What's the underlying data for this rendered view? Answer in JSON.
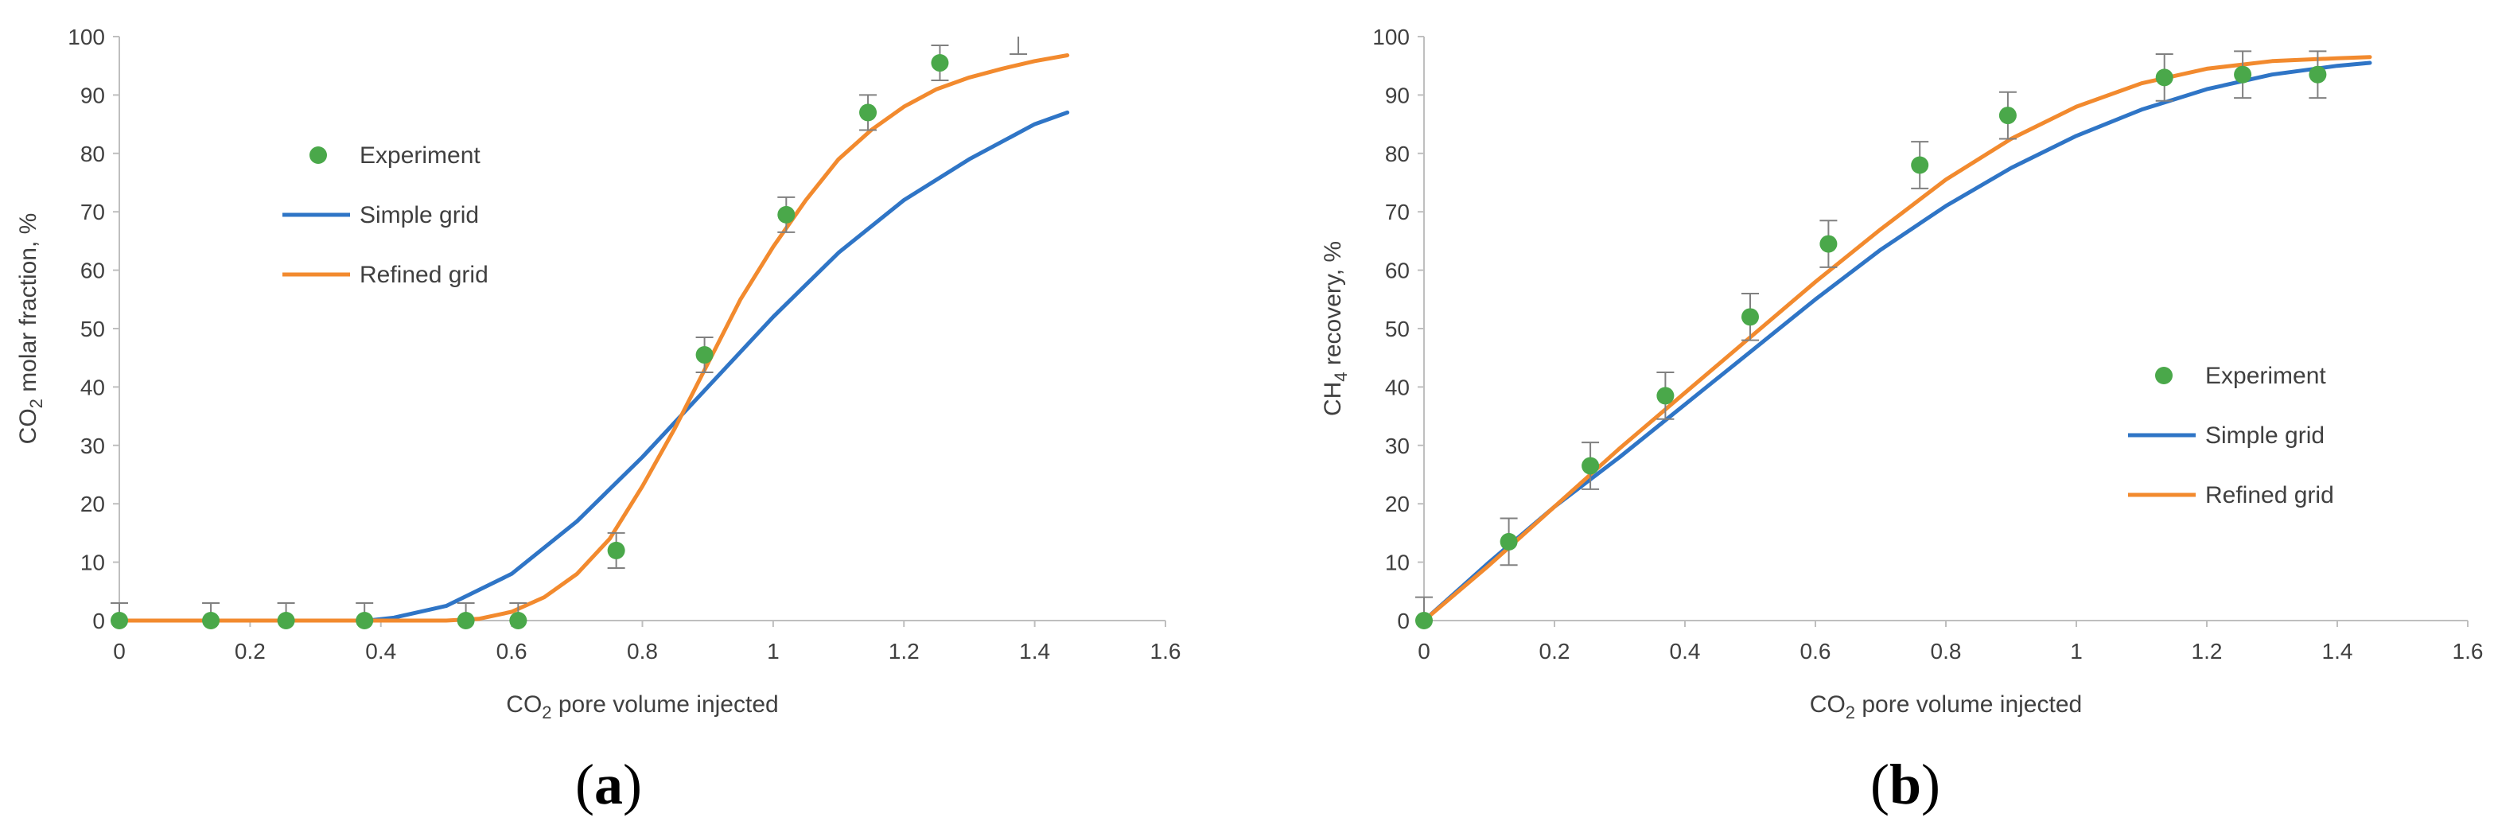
{
  "colors": {
    "experiment": "#4aa84a",
    "simple": "#2f75c6",
    "refined": "#f28a2e",
    "axis": "#bfbfbf",
    "errorbar": "#808080",
    "text": "#404040"
  },
  "chart_data": [
    {
      "type": "scatter",
      "panel_label": {
        "open": "(",
        "letter": "a",
        "close": ")"
      },
      "xlabel": {
        "pre": "CO",
        "sub": "2",
        "post": " pore volume injected"
      },
      "ylabel": {
        "pre": "CO",
        "sub": "2",
        "post": " molar fraction, %"
      },
      "xlim": [
        0,
        1.6
      ],
      "ylim": [
        0,
        100
      ],
      "xticks": [
        "0",
        "0.2",
        "0.4",
        "0.6",
        "0.8",
        "1",
        "1.2",
        "1.4",
        "1.6"
      ],
      "yticks": [
        "0",
        "10",
        "20",
        "30",
        "40",
        "50",
        "60",
        "70",
        "80",
        "90",
        "100"
      ],
      "legend_position": "upper-left",
      "legend": [
        "Experiment",
        "Simple grid",
        "Refined grid"
      ],
      "experiment": {
        "name": "Experiment",
        "x": [
          0,
          0.14,
          0.255,
          0.375,
          0.53,
          0.61,
          0.76,
          0.895,
          1.02,
          1.145,
          1.255
        ],
        "y": [
          0,
          0,
          0,
          0,
          0,
          0,
          12,
          45.5,
          69.5,
          87,
          95.5
        ],
        "error": [
          3,
          3,
          3,
          3,
          3,
          3,
          3,
          3,
          3,
          3,
          3
        ]
      },
      "orphan_errorbar": {
        "x": 1.375,
        "y": 100,
        "error": 3
      },
      "series": [
        {
          "name": "Simple grid",
          "x": [
            0,
            0.38,
            0.42,
            0.5,
            0.6,
            0.7,
            0.8,
            0.9,
            1.0,
            1.1,
            1.2,
            1.3,
            1.4,
            1.45
          ],
          "y": [
            0,
            0,
            0.5,
            2.5,
            8,
            17,
            28,
            40,
            52,
            63,
            72,
            79,
            85,
            87
          ]
        },
        {
          "name": "Refined grid",
          "x": [
            0,
            0.5,
            0.55,
            0.6,
            0.65,
            0.7,
            0.75,
            0.8,
            0.85,
            0.9,
            0.95,
            1.0,
            1.05,
            1.1,
            1.15,
            1.2,
            1.25,
            1.3,
            1.35,
            1.4,
            1.45
          ],
          "y": [
            0,
            0,
            0.3,
            1.5,
            4,
            8,
            14,
            23,
            33,
            44,
            55,
            64,
            72,
            79,
            84,
            88,
            91,
            93,
            94.5,
            95.8,
            96.8
          ]
        }
      ]
    },
    {
      "type": "scatter",
      "panel_label": {
        "open": "(",
        "letter": "b",
        "close": ")"
      },
      "xlabel": {
        "pre": "CO",
        "sub": "2",
        "post": " pore volume injected"
      },
      "ylabel": {
        "pre": "CH",
        "sub": "4",
        "post": " recovery, %"
      },
      "xlim": [
        0,
        1.6
      ],
      "ylim": [
        0,
        100
      ],
      "xticks": [
        "0",
        "0.2",
        "0.4",
        "0.6",
        "0.8",
        "1",
        "1.2",
        "1.4",
        "1.6"
      ],
      "yticks": [
        "0",
        "10",
        "20",
        "30",
        "40",
        "50",
        "60",
        "70",
        "80",
        "90",
        "100"
      ],
      "legend_position": "center-right",
      "legend": [
        "Experiment",
        "Simple grid",
        "Refined grid"
      ],
      "experiment": {
        "name": "Experiment",
        "x": [
          0,
          0.13,
          0.255,
          0.37,
          0.5,
          0.62,
          0.76,
          0.895,
          1.135,
          1.255,
          1.37
        ],
        "y": [
          0,
          13.5,
          26.5,
          38.5,
          52,
          64.5,
          78,
          86.5,
          93,
          93.5,
          93.5
        ],
        "error": [
          4,
          4,
          4,
          4,
          4,
          4,
          4,
          4,
          4,
          4,
          4
        ]
      },
      "series": [
        {
          "name": "Simple grid",
          "x": [
            0,
            0.1,
            0.2,
            0.3,
            0.4,
            0.5,
            0.6,
            0.7,
            0.8,
            0.9,
            1.0,
            1.1,
            1.2,
            1.3,
            1.4,
            1.45
          ],
          "y": [
            0,
            10,
            19.5,
            28,
            37,
            46,
            55,
            63.5,
            71,
            77.5,
            83,
            87.5,
            91,
            93.5,
            95,
            95.5
          ]
        },
        {
          "name": "Refined grid",
          "x": [
            0,
            0.1,
            0.2,
            0.3,
            0.4,
            0.5,
            0.6,
            0.7,
            0.8,
            0.9,
            1.0,
            1.1,
            1.2,
            1.3,
            1.4,
            1.45
          ],
          "y": [
            0,
            9.5,
            19.5,
            29.5,
            39,
            48.5,
            58,
            67,
            75.5,
            82.5,
            88,
            92,
            94.5,
            95.8,
            96.3,
            96.5
          ]
        }
      ]
    }
  ]
}
